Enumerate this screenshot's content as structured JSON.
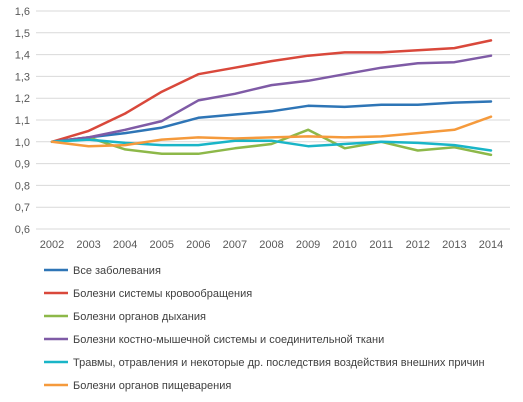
{
  "chart_data": {
    "type": "line",
    "x": [
      "2002",
      "2003",
      "2004",
      "2005",
      "2006",
      "2007",
      "2008",
      "2009",
      "2010",
      "2011",
      "2012",
      "2013",
      "2014"
    ],
    "ylim": [
      0.6,
      1.6
    ],
    "yticks": [
      "0,6",
      "0,7",
      "0,8",
      "0,9",
      "1,0",
      "1,1",
      "1,2",
      "1,3",
      "1,4",
      "1,5",
      "1,6"
    ],
    "grid": "horizontal",
    "legend_position": "bottom",
    "series": [
      {
        "name": "Все заболевания",
        "color": "#2E75B6",
        "values": [
          1.0,
          1.02,
          1.04,
          1.065,
          1.11,
          1.125,
          1.14,
          1.165,
          1.16,
          1.17,
          1.17,
          1.18,
          1.185
        ]
      },
      {
        "name": "Болезни системы кровообращения",
        "color": "#D9483B",
        "values": [
          1.0,
          1.05,
          1.13,
          1.23,
          1.31,
          1.34,
          1.37,
          1.395,
          1.41,
          1.41,
          1.42,
          1.43,
          1.465
        ]
      },
      {
        "name": "Болезни органов дыхания",
        "color": "#8DB849",
        "values": [
          1.0,
          1.02,
          0.965,
          0.945,
          0.945,
          0.97,
          0.99,
          1.055,
          0.97,
          1.0,
          0.96,
          0.975,
          0.94
        ]
      },
      {
        "name": "Болезни костно-мышечной системы и соединительной ткани",
        "color": "#7F5BA6",
        "values": [
          1.0,
          1.02,
          1.055,
          1.095,
          1.19,
          1.22,
          1.26,
          1.28,
          1.31,
          1.34,
          1.36,
          1.365,
          1.395
        ]
      },
      {
        "name": "Травмы, отравления и некоторые др. последствия воздействия внешних причин",
        "color": "#19B5C7",
        "values": [
          1.0,
          1.01,
          0.995,
          0.985,
          0.985,
          1.005,
          1.005,
          0.98,
          0.99,
          1.0,
          0.995,
          0.985,
          0.96
        ]
      },
      {
        "name": "Болезни органов пищеварения",
        "color": "#F59A3C",
        "values": [
          1.0,
          0.98,
          0.985,
          1.01,
          1.02,
          1.015,
          1.02,
          1.025,
          1.02,
          1.025,
          1.04,
          1.055,
          1.115
        ]
      }
    ]
  }
}
